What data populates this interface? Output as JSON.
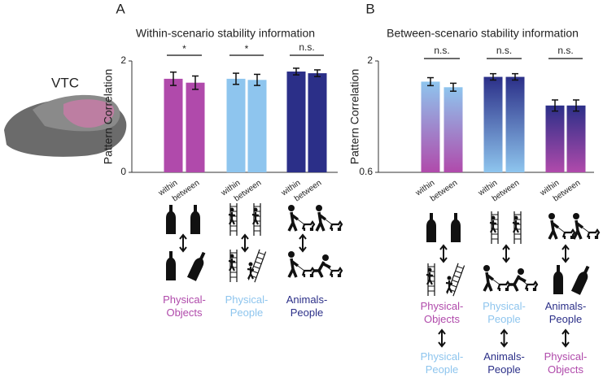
{
  "panel_labels": [
    "A",
    "B"
  ],
  "brain_label": "VTC",
  "chart_data": [
    {
      "type": "bar",
      "title": "Within-scenario stability information",
      "ylabel": "Pattern Correlation",
      "categories": [
        "within",
        "between",
        "within",
        "between",
        "within",
        "between"
      ],
      "values": [
        1.68,
        1.61,
        1.68,
        1.66,
        1.81,
        1.78
      ],
      "errors": [
        0.12,
        0.12,
        0.1,
        0.1,
        0.06,
        0.06
      ],
      "colors": [
        "#b04aab",
        "#b04aab",
        "#8ec5ee",
        "#8ec5ee",
        "#2b2f88",
        "#2b2f88"
      ],
      "significance": [
        "*",
        "*",
        "n.s."
      ],
      "groups": [
        {
          "label": [
            "Physical-",
            "Objects"
          ],
          "color": "#b04aab"
        },
        {
          "label": [
            "Physical-",
            "People"
          ],
          "color": "#8ec5ee"
        },
        {
          "label": [
            "Animals-",
            "People"
          ],
          "color": "#2b2f88"
        }
      ],
      "ylim": [
        0,
        2
      ],
      "yticks": [
        0,
        2
      ]
    },
    {
      "type": "gradient-bar",
      "title": "Between-scenario stability information",
      "ylabel": "Pattern Correlation",
      "categories": [
        "within",
        "between",
        "within",
        "between",
        "within",
        "between"
      ],
      "values": [
        1.74,
        1.67,
        1.8,
        1.8,
        1.44,
        1.44
      ],
      "errors": [
        0.05,
        0.05,
        0.04,
        0.04,
        0.07,
        0.07
      ],
      "colors": [
        [
          "#8ec5ee",
          "#b04aab"
        ],
        [
          "#8ec5ee",
          "#b04aab"
        ],
        [
          "#2b2f88",
          "#8ec5ee"
        ],
        [
          "#2b2f88",
          "#8ec5ee"
        ],
        [
          "#2b2f88",
          "#b04aab"
        ],
        [
          "#2b2f88",
          "#b04aab"
        ]
      ],
      "significance": [
        "n.s.",
        "n.s.",
        "n.s."
      ],
      "groups": [
        {
          "top": {
            "label": [
              "Physical-",
              "Objects"
            ],
            "color": "#b04aab"
          },
          "bottom": {
            "label": [
              "Physical-",
              "People"
            ],
            "color": "#8ec5ee"
          }
        },
        {
          "top": {
            "label": [
              "Physical-",
              "People"
            ],
            "color": "#8ec5ee"
          },
          "bottom": {
            "label": [
              "Animals-",
              "People"
            ],
            "color": "#2b2f88"
          }
        },
        {
          "top": {
            "label": [
              "Animals-",
              "People"
            ],
            "color": "#2b2f88"
          },
          "bottom": {
            "label": [
              "Physical-",
              "Objects"
            ],
            "color": "#b04aab"
          }
        }
      ],
      "ylim": [
        0.6,
        2
      ],
      "yticks": [
        0.6,
        2
      ]
    }
  ]
}
